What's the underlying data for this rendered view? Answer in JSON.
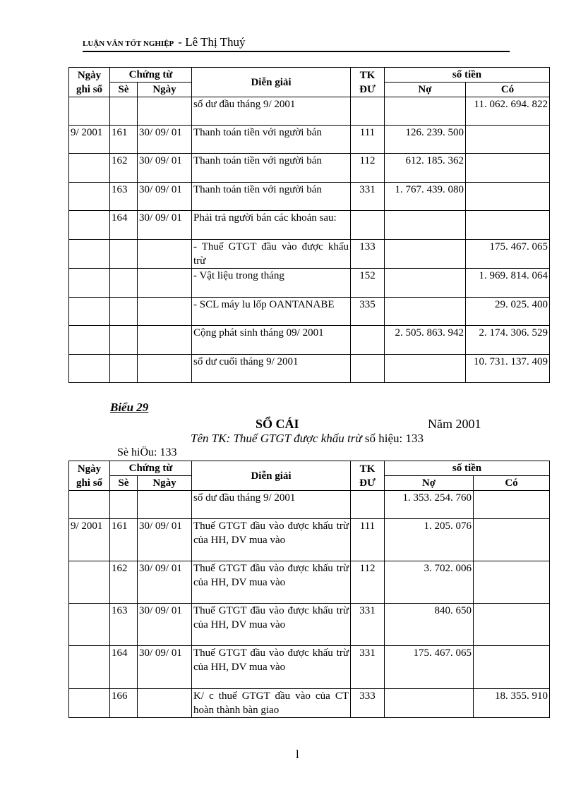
{
  "header": {
    "label": "LUẬN VĂN TỐT NGHIỆP",
    "author": "- Lê Thị Thuý"
  },
  "columns": {
    "ngay_ghi_so": "Ngày ghi sổ",
    "chung_tu": "Chứng từ",
    "so": "Sè",
    "ngay": "Ngày",
    "dien_giai": "Diễn giải",
    "tk": "TK ĐƯ",
    "so_tien": "số tiền",
    "no": "Nợ",
    "co": "Có"
  },
  "table1": [
    {
      "ngay_ghi_so": "",
      "so": "",
      "ngay": "",
      "dien_giai": "số dư đầu tháng 9/ 2001",
      "tk": "",
      "no": "",
      "co": "11. 062. 694. 822"
    },
    {
      "ngay_ghi_so": "9/ 2001",
      "so": "161",
      "ngay": "30/ 09/ 01",
      "dien_giai": "Thanh toán tiền với người bán",
      "tk": "111",
      "no": "126. 239. 500",
      "co": ""
    },
    {
      "ngay_ghi_so": "",
      "so": "162",
      "ngay": "30/ 09/ 01",
      "dien_giai": "Thanh toán tiền với người bán",
      "tk": "112",
      "no": "612. 185. 362",
      "co": ""
    },
    {
      "ngay_ghi_so": "",
      "so": "163",
      "ngay": "30/ 09/ 01",
      "dien_giai": "Thanh toán tiền với người bán",
      "tk": "331",
      "no": "1. 767. 439. 080",
      "co": ""
    },
    {
      "ngay_ghi_so": "",
      "so": "164",
      "ngay": "30/ 09/ 01",
      "dien_giai": "Phải trả người bán các khoản sau:",
      "tk": "",
      "no": "",
      "co": ""
    },
    {
      "ngay_ghi_so": "",
      "so": "",
      "ngay": "",
      "dien_giai": "- Thuế GTGT đầu vào được khấu trừ",
      "tk": "133",
      "no": "",
      "co": "175. 467. 065"
    },
    {
      "ngay_ghi_so": "",
      "so": "",
      "ngay": "",
      "dien_giai": "- Vật liệu trong tháng",
      "tk": "152",
      "no": "",
      "co": "1. 969. 814. 064"
    },
    {
      "ngay_ghi_so": "",
      "so": "",
      "ngay": "",
      "dien_giai": "- SCL máy lu lốp OANTANABE",
      "tk": "335",
      "no": "",
      "co": "29. 025. 400"
    },
    {
      "ngay_ghi_so": "",
      "so": "",
      "ngay": "",
      "dien_giai": "Cộng phát sinh tháng 09/ 2001",
      "tk": "",
      "no": "2. 505. 863. 942",
      "co": "2. 174. 306. 529"
    },
    {
      "ngay_ghi_so": "",
      "so": "",
      "ngay": "",
      "dien_giai": "số dư cuối tháng 9/ 2001",
      "tk": "",
      "no": "",
      "co": "10. 731. 137. 409"
    }
  ],
  "section2": {
    "bieu": "Biểu 29",
    "title": "SỔ CÁI",
    "year": "Năm 2001",
    "account_name": "Tên TK: Thuế GTGT được khấu trừ",
    "account_no_label": "số hiệu: 133",
    "so_hieu": "Sè hiÖu: 133"
  },
  "table2": [
    {
      "ngay_ghi_so": "",
      "so": "",
      "ngay": "",
      "dien_giai": "số dư đầu tháng 9/ 2001",
      "tk": "",
      "no": "1. 353. 254. 760",
      "co": ""
    },
    {
      "ngay_ghi_so": "9/ 2001",
      "so": "161",
      "ngay": "30/ 09/ 01",
      "dien_giai": "Thuế GTGT đầu vào được khấu trừ của HH, DV mua vào",
      "tk": "111",
      "no": "1. 205. 076",
      "co": ""
    },
    {
      "ngay_ghi_so": "",
      "so": "162",
      "ngay": "30/ 09/ 01",
      "dien_giai": "Thuế GTGT đầu vào được khấu trừ của HH, DV mua vào",
      "tk": "112",
      "no": "3. 702. 006",
      "co": ""
    },
    {
      "ngay_ghi_so": "",
      "so": "163",
      "ngay": "30/ 09/ 01",
      "dien_giai": "Thuế GTGT đầu vào được khấu trừ của HH, DV mua vào",
      "tk": "331",
      "no": "840. 650",
      "co": ""
    },
    {
      "ngay_ghi_so": "",
      "so": "164",
      "ngay": "30/ 09/ 01",
      "dien_giai": "Thuế GTGT đầu vào được khấu trừ của HH, DV mua vào",
      "tk": "331",
      "no": "175. 467. 065",
      "co": ""
    },
    {
      "ngay_ghi_so": "",
      "so": "166",
      "ngay": "",
      "dien_giai": "K/ c thuế GTGT đầu vào của CT hoàn thành bàn giao",
      "tk": "333",
      "no": "",
      "co": "18. 355. 910"
    }
  ],
  "footer": {
    "page_number": "l"
  }
}
